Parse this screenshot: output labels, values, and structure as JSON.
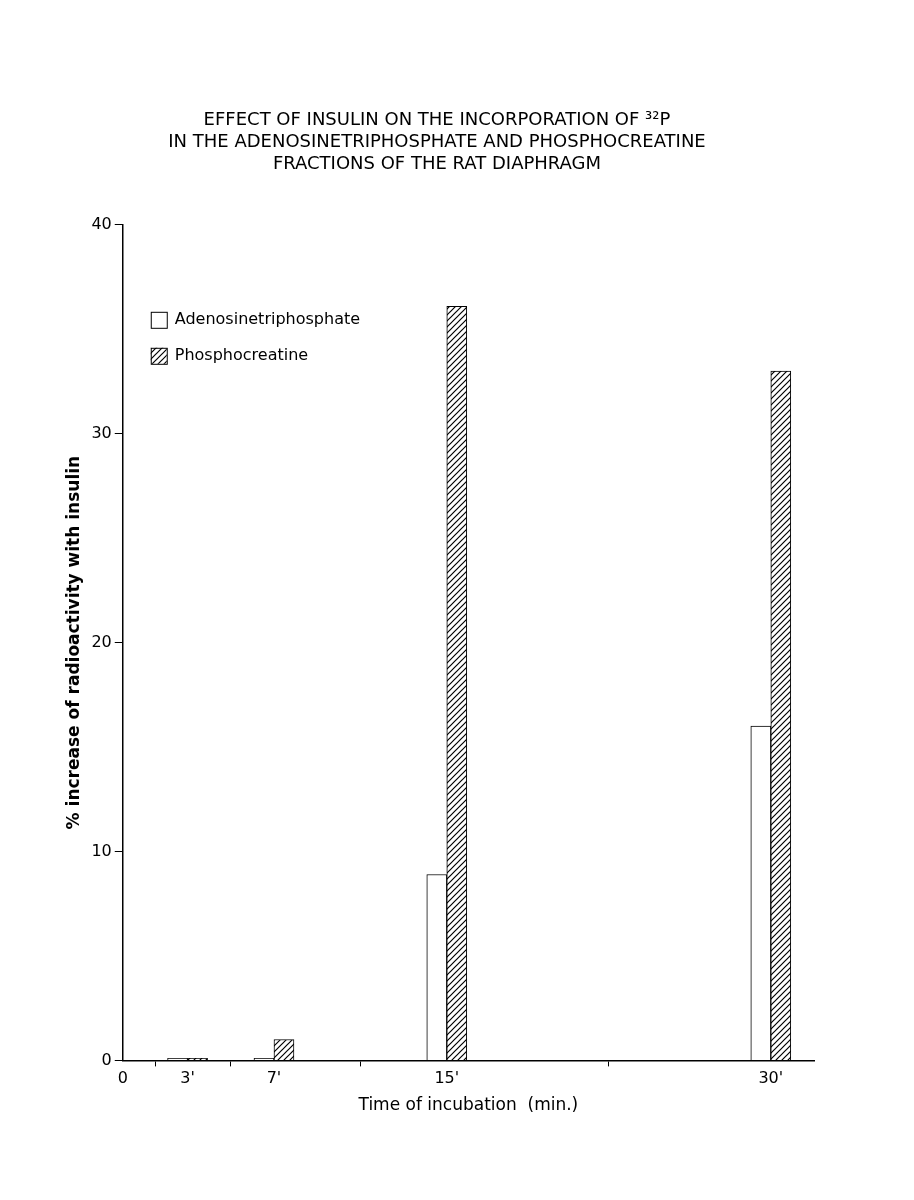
{
  "chart_data": {
    "type": "bar",
    "title": "EFFECT OF INSULIN ON THE INCORPORATION OF ³²P\nIN THE ADENOSINETRIPHOSPHATE AND PHOSPHOCREATINE\nFRACTIONS OF THE RAT DIAPHRAGM",
    "x": [
      3,
      7,
      15,
      30
    ],
    "series": [
      {
        "name": "Adenosinetriphosphate",
        "color": "#ffffff",
        "values": [
          0.1,
          0.1,
          8.9,
          16
        ]
      },
      {
        "name": "Phosphocreatine",
        "color": "#000000",
        "values": [
          0.1,
          1,
          36.1,
          33
        ]
      }
    ],
    "x_label": "Time of incubation  (min.)",
    "y_label": "% increase of radioactivity with insulin",
    "xlim": [
      0,
      32
    ],
    "xticks": [
      0,
      {
        "value": 3,
        "label": "3'"
      },
      {
        "value": 7,
        "label": "7'"
      },
      {
        "value": 15,
        "label": "15'"
      },
      {
        "value": 30,
        "label": "30'"
      }
    ],
    "ylim": [
      0,
      40
    ],
    "yticks": [
      0,
      10,
      20,
      30,
      40
    ],
    "grid": false,
    "legend": "top left"
  }
}
